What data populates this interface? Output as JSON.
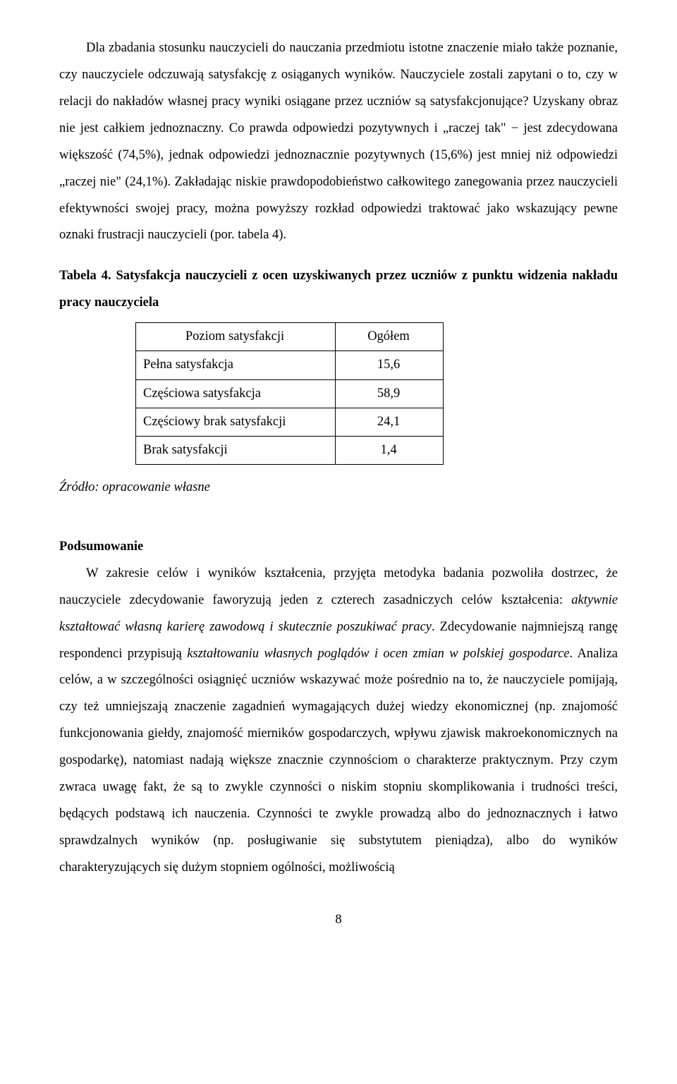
{
  "para1": "Dla zbadania stosunku nauczycieli do nauczania przedmiotu istotne znaczenie miało także poznanie, czy nauczyciele odczuwają satysfakcję z osiąganych wyników. Nauczyciele zostali zapytani o to, czy w relacji do nakładów własnej pracy wyniki osiągane przez uczniów są satysfakcjonujące? Uzyskany obraz nie jest całkiem jednoznaczny. Co prawda odpowiedzi pozytywnych i „raczej tak\" − jest zdecydowana większość (74,5%), jednak odpowiedzi jednoznacznie pozytywnych (15,6%) jest mniej niż odpowiedzi „raczej nie\" (24,1%). Zakładając niskie prawdopodobieństwo całkowitego zanegowania przez nauczycieli efektywności swojej pracy, można powyższy rozkład odpowiedzi traktować jako wskazujący pewne oznaki frustracji nauczycieli (por. tabela 4).",
  "table_caption": "Tabela 4. Satysfakcja nauczycieli z ocen uzyskiwanych przez uczniów z punktu widzenia nakładu pracy nauczyciela",
  "table": {
    "header": {
      "col1": "Poziom satysfakcji",
      "col2": "Ogółem"
    },
    "rows": [
      {
        "label": "Pełna satysfakcja",
        "value": "15,6"
      },
      {
        "label": "Częściowa satysfakcja",
        "value": "58,9"
      },
      {
        "label": "Częściowy brak satysfakcji",
        "value": "24,1"
      },
      {
        "label": "Brak satysfakcji",
        "value": "1,4"
      }
    ]
  },
  "source": "Źródło: opracowanie własne",
  "section_heading": "Podsumowanie",
  "para2_a": "W zakresie celów i wyników kształcenia, przyjęta metodyka badania pozwoliła dostrzec, że nauczyciele zdecydowanie faworyzują jeden z czterech zasadniczych celów kształcenia: ",
  "para2_it1": "aktywnie kształtować własną karierę zawodową i skutecznie poszukiwać pracy",
  "para2_b": ". Zdecydowanie najmniejszą rangę respondenci przypisują ",
  "para2_it2": "kształtowaniu własnych poglądów i ocen zmian w polskiej gospodarce",
  "para2_c": ". Analiza celów, a w szczególności osiągnięć uczniów wskazywać może pośrednio na to, że nauczyciele pomijają, czy też umniejszają znaczenie zagadnień wymagających dużej wiedzy ekonomicznej (np. znajomość funkcjonowania giełdy, znajomość mierników gospodarczych, wpływu zjawisk makroekonomicznych na gospodarkę), natomiast nadają większe znacznie czynnościom o charakterze praktycznym. Przy czym zwraca uwagę fakt, że są to zwykle czynności o niskim stopniu skomplikowania i trudności treści, będących podstawą ich nauczenia. Czynności te zwykle prowadzą albo do jednoznacznych i łatwo sprawdzalnych wyników (np. posługiwanie się substytutem pieniądza), albo do wyników charakteryzujących się dużym stopniem ogólności, możliwością",
  "page_number": "8"
}
